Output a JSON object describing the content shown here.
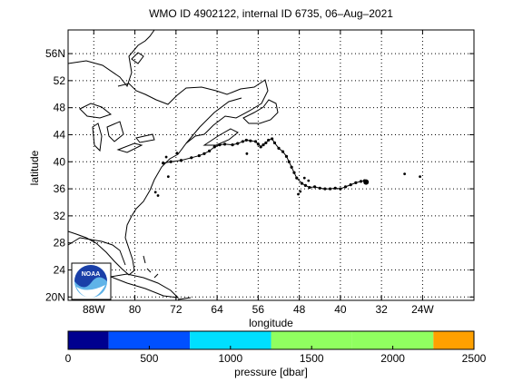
{
  "title": "WMO ID 4902122, internal ID 6735, 06–Aug–2021",
  "xlabel": "longitude",
  "ylabel": "latitude",
  "lat_ticks": [
    "56N",
    "52",
    "48",
    "44",
    "40",
    "36",
    "32",
    "28",
    "24",
    "20N"
  ],
  "lon_ticks": [
    "88W",
    "80",
    "72",
    "64",
    "56",
    "48",
    "40",
    "32",
    "24W"
  ],
  "logo": {
    "text": "NOAA",
    "colors": [
      "#1a3fa8",
      "#5fb3e8",
      "#ffffff"
    ]
  },
  "colorbar": {
    "label": "pressure [dbar]",
    "ticks": [
      "0",
      "500",
      "1000",
      "1500",
      "2000",
      "2500"
    ],
    "segments": [
      {
        "from": 0,
        "to": 250,
        "color": "#00008f"
      },
      {
        "from": 250,
        "to": 750,
        "color": "#0050ff"
      },
      {
        "from": 750,
        "to": 1250,
        "color": "#00dfff"
      },
      {
        "from": 1250,
        "to": 1750,
        "color": "#90ff60"
      },
      {
        "from": 1750,
        "to": 2250,
        "color": "#90ff60"
      },
      {
        "from": 2250,
        "to": 2500,
        "color": "#ffa000"
      }
    ]
  },
  "map_data": {
    "type": "scatter",
    "lon_range": [
      -93,
      -14
    ],
    "lat_range": [
      19.5,
      59.5
    ],
    "track": [
      [
        -74.5,
        39.8
      ],
      [
        -73,
        40
      ],
      [
        -71,
        40.2
      ],
      [
        -69,
        40.6
      ],
      [
        -67.5,
        40.9
      ],
      [
        -66.5,
        41.2
      ],
      [
        -65.5,
        41.6
      ],
      [
        -64.5,
        42.2
      ],
      [
        -63.5,
        42.5
      ],
      [
        -62.5,
        42.6
      ],
      [
        -61,
        42.5
      ],
      [
        -60,
        42.7
      ],
      [
        -59,
        43
      ],
      [
        -58.3,
        43.2
      ],
      [
        -57.5,
        43.1
      ],
      [
        -56.5,
        43
      ],
      [
        -56,
        42.6
      ],
      [
        -55.5,
        42.2
      ],
      [
        -55,
        42.5
      ],
      [
        -54.5,
        42.8
      ],
      [
        -54,
        43.2
      ],
      [
        -53.3,
        43.4
      ],
      [
        -52.8,
        42.8
      ],
      [
        -52,
        42
      ],
      [
        -51.2,
        41.5
      ],
      [
        -50.5,
        40.8
      ],
      [
        -50,
        40
      ],
      [
        -49.5,
        39.2
      ],
      [
        -49,
        38.4
      ],
      [
        -48.5,
        37.6
      ],
      [
        -47.5,
        36.8
      ],
      [
        -46.8,
        36.5
      ],
      [
        -46,
        36.2
      ],
      [
        -45,
        36.3
      ],
      [
        -44,
        36.1
      ],
      [
        -43,
        36
      ],
      [
        -42,
        36
      ],
      [
        -41,
        36.1
      ],
      [
        -40,
        36
      ],
      [
        -39,
        36.3
      ],
      [
        -38,
        36.6
      ],
      [
        -37,
        36.9
      ],
      [
        -36,
        37.1
      ],
      [
        -35.3,
        37.2
      ],
      [
        -35,
        37
      ]
    ],
    "scattered": [
      [
        -73.5,
        37.8
      ],
      [
        -76,
        35.5
      ],
      [
        -75.5,
        35
      ],
      [
        -47,
        37.6
      ],
      [
        -46.2,
        37.2
      ],
      [
        -48.2,
        35.2
      ],
      [
        -47.8,
        35.6
      ],
      [
        -58.2,
        41.2
      ],
      [
        -27.5,
        38.2
      ],
      [
        -24.5,
        37.8
      ],
      [
        -73.9,
        40.7
      ],
      [
        -71.8,
        41.3
      ]
    ]
  }
}
